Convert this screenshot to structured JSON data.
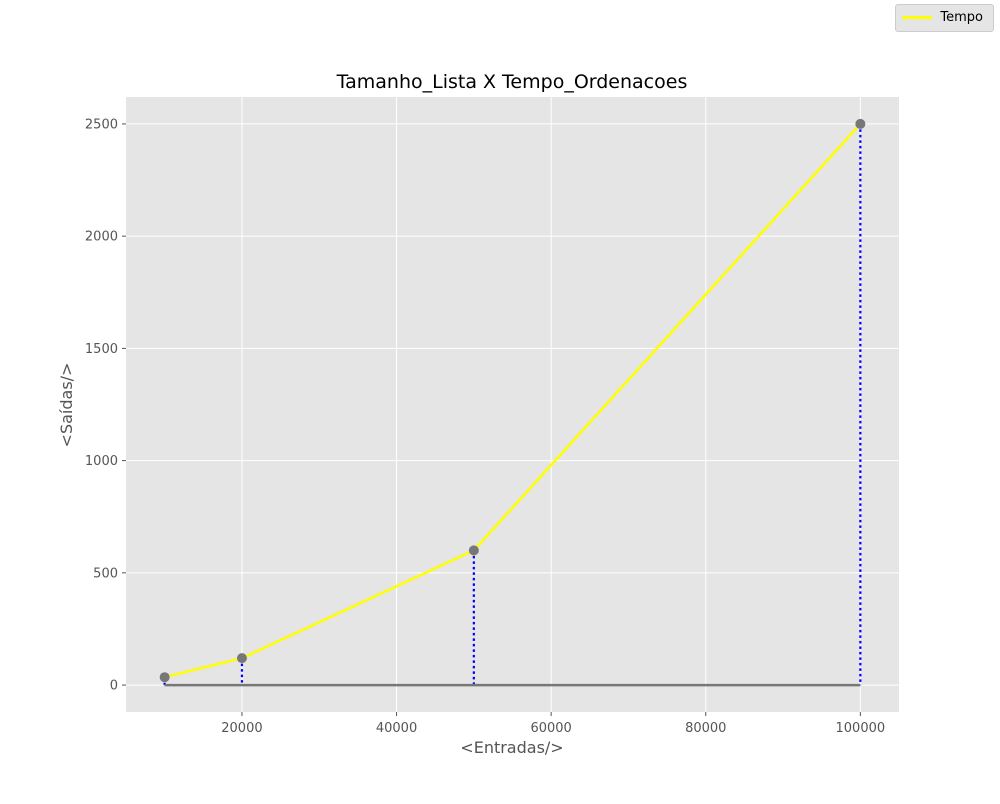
{
  "chart_data": {
    "type": "line",
    "title": "Tamanho_Lista X Tempo_Ordenacoes",
    "xlabel": "<Entradas/>",
    "ylabel": "<Saídas/>",
    "xlim": [
      5000,
      105000
    ],
    "ylim": [
      -120,
      2620
    ],
    "x_ticks": [
      20000,
      40000,
      60000,
      80000,
      100000
    ],
    "y_ticks": [
      0,
      500,
      1000,
      1500,
      2000,
      2500
    ],
    "grid": true,
    "legend_position": "top-right",
    "series": [
      {
        "name": "Tempo",
        "color": "#ffff00",
        "x": [
          10000,
          20000,
          50000,
          100000
        ],
        "y": [
          35,
          120,
          600,
          2500
        ]
      }
    ],
    "marker_color": "#777777",
    "stem_color": "#0000ff",
    "baseline_color": "#777777",
    "background_color": "#e5e5e5"
  }
}
